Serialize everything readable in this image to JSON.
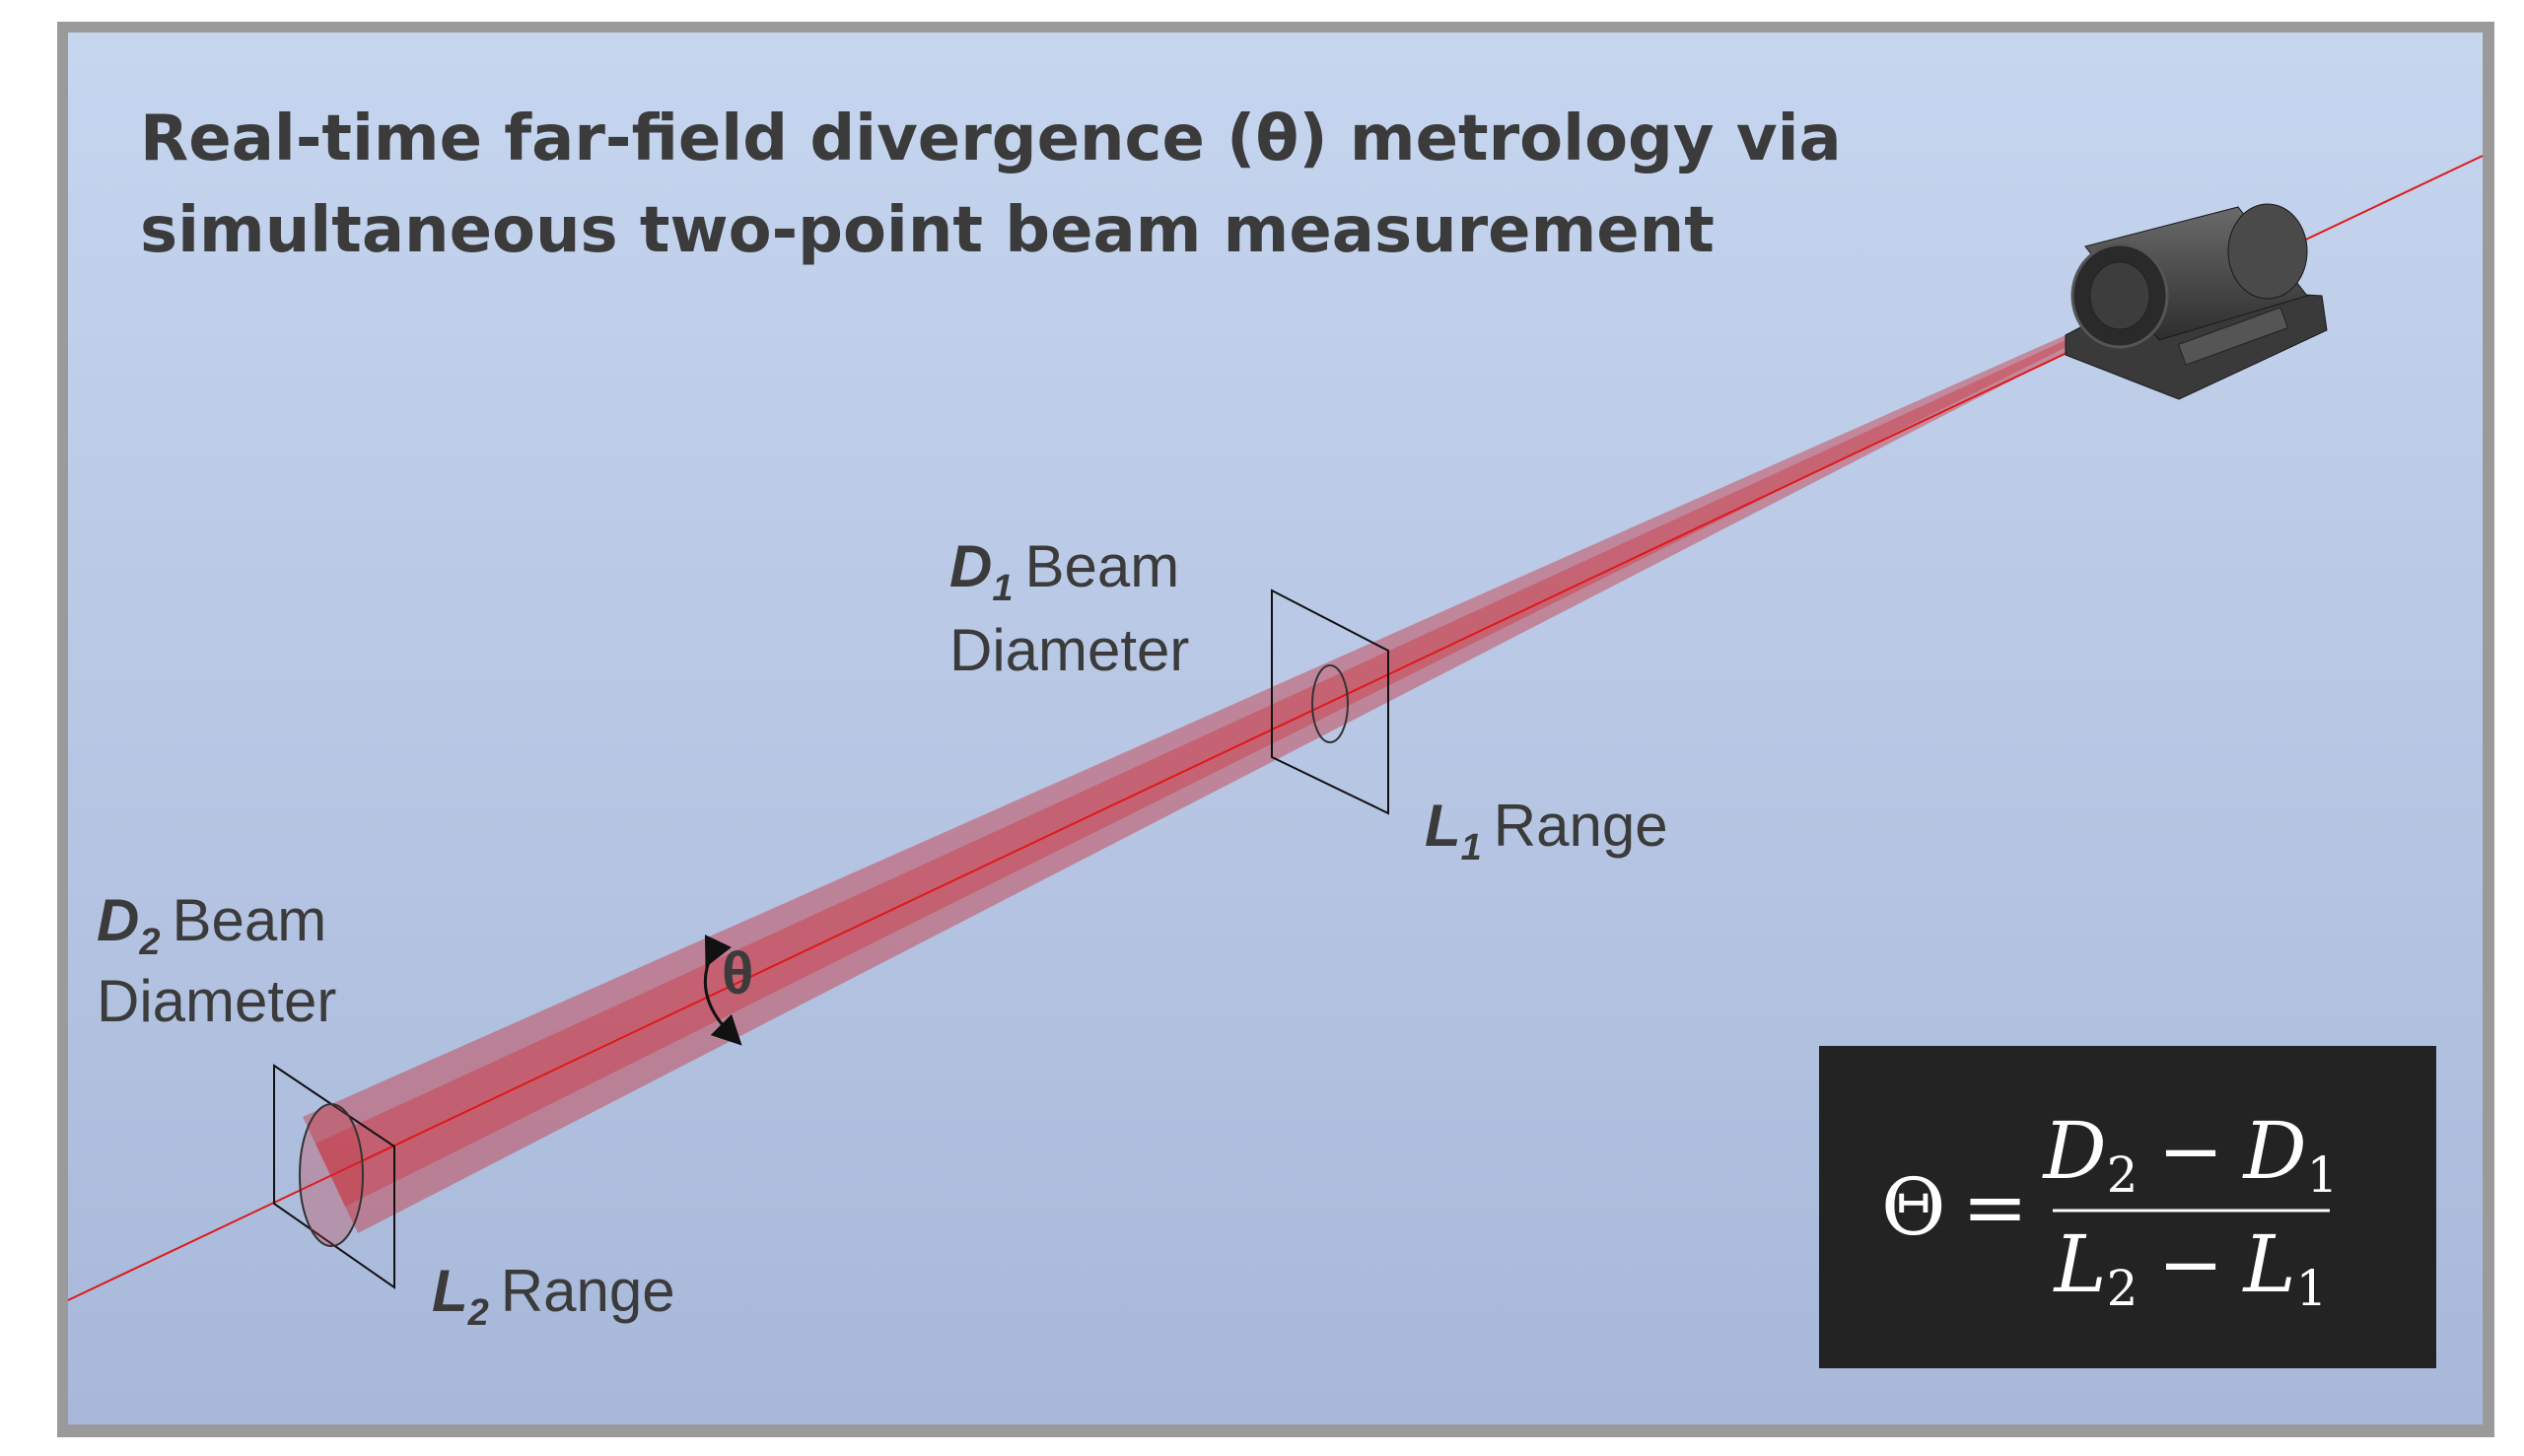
{
  "title": {
    "lines": [
      "Real-time far-field divergence (θ) metrology via",
      "simultaneous two-point beam measurement"
    ]
  },
  "labels": {
    "d1": {
      "symbol": "D",
      "sub": "1",
      "word": "Beam",
      "line2": "Diameter"
    },
    "l1": {
      "symbol": "L",
      "sub": "1",
      "word": "Range"
    },
    "d2": {
      "symbol": "D",
      "sub": "2",
      "word": "Beam",
      "line2": "Diameter"
    },
    "l2": {
      "symbol": "L",
      "sub": "2",
      "word": "Range"
    },
    "angle": "θ"
  },
  "formula": {
    "lhs": "Θ",
    "equals": "=",
    "numerator": {
      "a": "D",
      "a_sub": "2",
      "minus": "−",
      "b": "D",
      "b_sub": "1"
    },
    "denominator": {
      "a": "L",
      "a_sub": "2",
      "minus": "−",
      "b": "L",
      "b_sub": "1"
    }
  }
}
